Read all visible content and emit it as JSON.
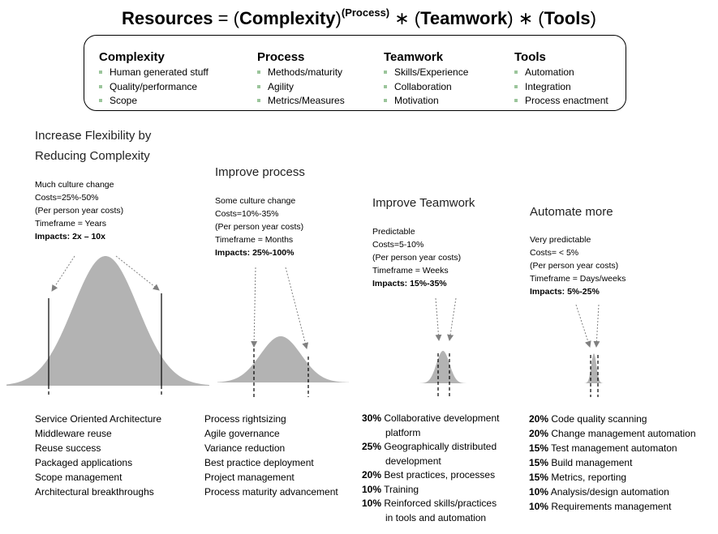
{
  "title": {
    "resources": "Resources",
    "eq": " = (",
    "complexity": "Complexity",
    "close1": ")",
    "process_sup": "(Process)",
    "mul1": " ∗ (",
    "teamwork": "Teamwork",
    "close2": ") ∗ (",
    "tools": "Tools",
    "close3": ")"
  },
  "factors": [
    {
      "heading": "Complexity",
      "items": [
        "Human generated stuff",
        "Quality/performance",
        "Scope"
      ]
    },
    {
      "heading": "Process",
      "items": [
        "Methods/maturity",
        "Agility",
        "Metrics/Measures"
      ]
    },
    {
      "heading": "Teamwork",
      "items": [
        "Skills/Experience",
        "Collaboration",
        "Motivation"
      ]
    },
    {
      "heading": "Tools",
      "items": [
        "Automation",
        "Integration",
        "Process enactment"
      ]
    }
  ],
  "stages": [
    {
      "title_lines": [
        "Increase Flexibility by",
        "Reducing Complexity"
      ],
      "info": [
        "Much culture change",
        "Costs=25%-50%",
        "(Per person year costs)",
        "Timeframe = Years"
      ],
      "impact": "Impacts: 2x – 10x"
    },
    {
      "title_lines": [
        "Improve process"
      ],
      "info": [
        "Some culture change",
        "Costs=10%-35%",
        "(Per person year costs)",
        "Timeframe = Months"
      ],
      "impact": "Impacts: 25%-100%"
    },
    {
      "title_lines": [
        "Improve Teamwork"
      ],
      "info": [
        "Predictable",
        "Costs=5-10%",
        "(Per person year costs)",
        "Timeframe = Weeks"
      ],
      "impact": "Impacts: 15%-35%"
    },
    {
      "title_lines": [
        "Automate more"
      ],
      "info": [
        "Very predictable",
        "Costs= < 5%",
        "(Per person year costs)",
        "Timeframe = Days/weeks"
      ],
      "impact": "Impacts: 5%-25%"
    }
  ],
  "lists": {
    "complexity": [
      "Service Oriented Architecture",
      "Middleware reuse",
      "Reuse success",
      "Packaged applications",
      "Scope management",
      "Architectural breakthroughs"
    ],
    "process": [
      "Process rightsizing",
      "Agile governance",
      "Variance reduction",
      "Best practice deployment",
      "Project management",
      "Process maturity advancement"
    ],
    "teamwork": [
      {
        "pct": "30%",
        "text": "Collaborative development",
        "cont": "platform"
      },
      {
        "pct": "25%",
        "text": "Geographically distributed",
        "cont": "development"
      },
      {
        "pct": "20%",
        "text": "Best practices, processes",
        "cont": ""
      },
      {
        "pct": "10%",
        "text": "Training",
        "cont": ""
      },
      {
        "pct": "10%",
        "text": "Reinforced skills/practices",
        "cont": "in tools and automation"
      }
    ],
    "tools": [
      {
        "pct": "20%",
        "text": "Code quality scanning"
      },
      {
        "pct": "20%",
        "text": "Change management automation"
      },
      {
        "pct": "15%",
        "text": "Test management automaton"
      },
      {
        "pct": "15%",
        "text": "Build management"
      },
      {
        "pct": "15%",
        "text": "Metrics, reporting"
      },
      {
        "pct": "10%",
        "text": "Analysis/design automation"
      },
      {
        "pct": "10%",
        "text": "Requirements management"
      }
    ]
  },
  "colors": {
    "curve_fill": "#b3b3b3",
    "bullet": "#9bc59b"
  }
}
